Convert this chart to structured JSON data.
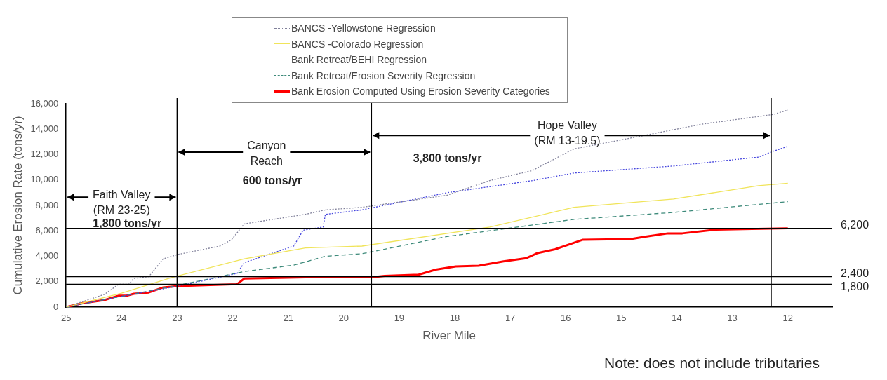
{
  "chart_data": {
    "type": "line",
    "xlabel": "River Mile",
    "ylabel": "Cumulative Erosion Rate (tons/yr)",
    "xlim": [
      25,
      11.2
    ],
    "xticks": [
      25,
      24,
      23,
      22,
      21,
      20,
      19,
      18,
      17,
      16,
      15,
      14,
      13,
      12
    ],
    "ylim": [
      0,
      16000
    ],
    "yticks": [
      0,
      {
        "value": 2000,
        "label": "2,000"
      },
      {
        "value": 4000,
        "label": "4,000"
      },
      {
        "value": 6000,
        "label": "6,000"
      },
      {
        "value": 8000,
        "label": "8,000"
      },
      {
        "value": 10000,
        "label": "10,000"
      },
      {
        "value": 12000,
        "label": "12,000"
      },
      {
        "value": 14000,
        "label": "14,000"
      },
      {
        "value": 16000,
        "label": "16,000"
      }
    ],
    "grid": false,
    "legend": "top",
    "marker": "none",
    "series": [
      {
        "name": "BANCS -Yellowstone Regression",
        "color": "#80809a",
        "line_style": "dotted",
        "x": [
          25,
          24.31,
          24.05,
          23.87,
          23.78,
          23.51,
          23.25,
          22.98,
          22.23,
          22.02,
          21.79,
          20.69,
          20.33,
          19.67,
          18.14,
          17.37,
          16.6,
          15.85,
          14.83,
          13.54,
          12.27,
          12
        ],
        "values": [
          0,
          1000,
          1800,
          1800,
          2250,
          2400,
          3800,
          4150,
          4800,
          5300,
          6550,
          7300,
          7650,
          7850,
          8800,
          9950,
          10750,
          12450,
          13300,
          14400,
          15150,
          15500
        ]
      },
      {
        "name": "BANCS -Colorado Regression",
        "color": "#f0e45a",
        "line_style": "solid",
        "x": [
          25,
          24,
          23.12,
          21.79,
          20.69,
          19.67,
          17.37,
          15.85,
          14.06,
          12.53,
          12
        ],
        "values": [
          0,
          1100,
          2300,
          3800,
          4650,
          4800,
          6300,
          7850,
          8500,
          9550,
          9750
        ]
      },
      {
        "name": "Bank Retreat/BEHI Regression",
        "color": "#4444dd",
        "line_style": "dotted",
        "x": [
          25,
          24,
          22.98,
          21.92,
          21.79,
          20.9,
          20.73,
          20.37,
          20.33,
          19.67,
          18.14,
          16.6,
          15.85,
          14.06,
          12.53,
          12.27,
          12
        ],
        "values": [
          0,
          850,
          1650,
          2650,
          3500,
          4800,
          6050,
          6300,
          7300,
          7650,
          9000,
          9950,
          10550,
          11100,
          11800,
          12250,
          12650
        ]
      },
      {
        "name": "Bank Retreat/Erosion Severity Regression",
        "color": "#3d8a7a",
        "line_style": "dashed",
        "x": [
          25,
          24,
          23,
          21.79,
          20.9,
          20.33,
          19.67,
          18.14,
          15.85,
          14.06,
          12
        ],
        "values": [
          0,
          850,
          1700,
          2800,
          3300,
          4000,
          4200,
          5550,
          6900,
          7450,
          8300
        ]
      },
      {
        "name": "Bank Erosion Computed Using Erosion Severity Categories",
        "color": "#ff0000",
        "line_style": "solid",
        "x": [
          25,
          24.71,
          24.31,
          24.05,
          23.91,
          23.78,
          23.51,
          23.25,
          22.98,
          21.92,
          21.79,
          20.69,
          19.5,
          19.26,
          18.65,
          18.34,
          17.98,
          17.57,
          17.12,
          16.71,
          16.51,
          16.19,
          15.69,
          14.83,
          14.56,
          14.16,
          13.9,
          13.29,
          12
        ],
        "values": [
          0,
          300,
          550,
          900,
          900,
          1050,
          1150,
          1550,
          1650,
          1800,
          2250,
          2350,
          2350,
          2450,
          2550,
          2950,
          3200,
          3250,
          3600,
          3850,
          4250,
          4550,
          5300,
          5350,
          5550,
          5800,
          5800,
          6100,
          6200
        ]
      }
    ],
    "ref_lines": [
      {
        "axis": "x",
        "value": 23,
        "color": "#000000"
      },
      {
        "axis": "x",
        "value": 19.5,
        "color": "#000000"
      },
      {
        "axis": "x",
        "value": 12.3,
        "color": "#000000"
      },
      {
        "axis": "y",
        "value": 6200,
        "label": "6,200",
        "color": "#000000"
      },
      {
        "axis": "y",
        "value": 2400,
        "label": "2,400",
        "color": "#000000"
      },
      {
        "axis": "y",
        "value": 1800,
        "label": "1,800",
        "color": "#000000"
      }
    ],
    "annotations": [
      {
        "text": "Faith Valley\n(RM 23-25)",
        "x": 23,
        "y": 8650
      },
      "1,800 tons/yr",
      {
        "text": "Canyon\nReach",
        "x": 19.5,
        "y": 12200
      },
      "600 tons/yr",
      "3,800 tons/yr",
      {
        "text": "Hope Valley\n(RM 13-19.5)",
        "x": 12.3,
        "y": 13500
      },
      "Note: does not include tributaries"
    ]
  }
}
